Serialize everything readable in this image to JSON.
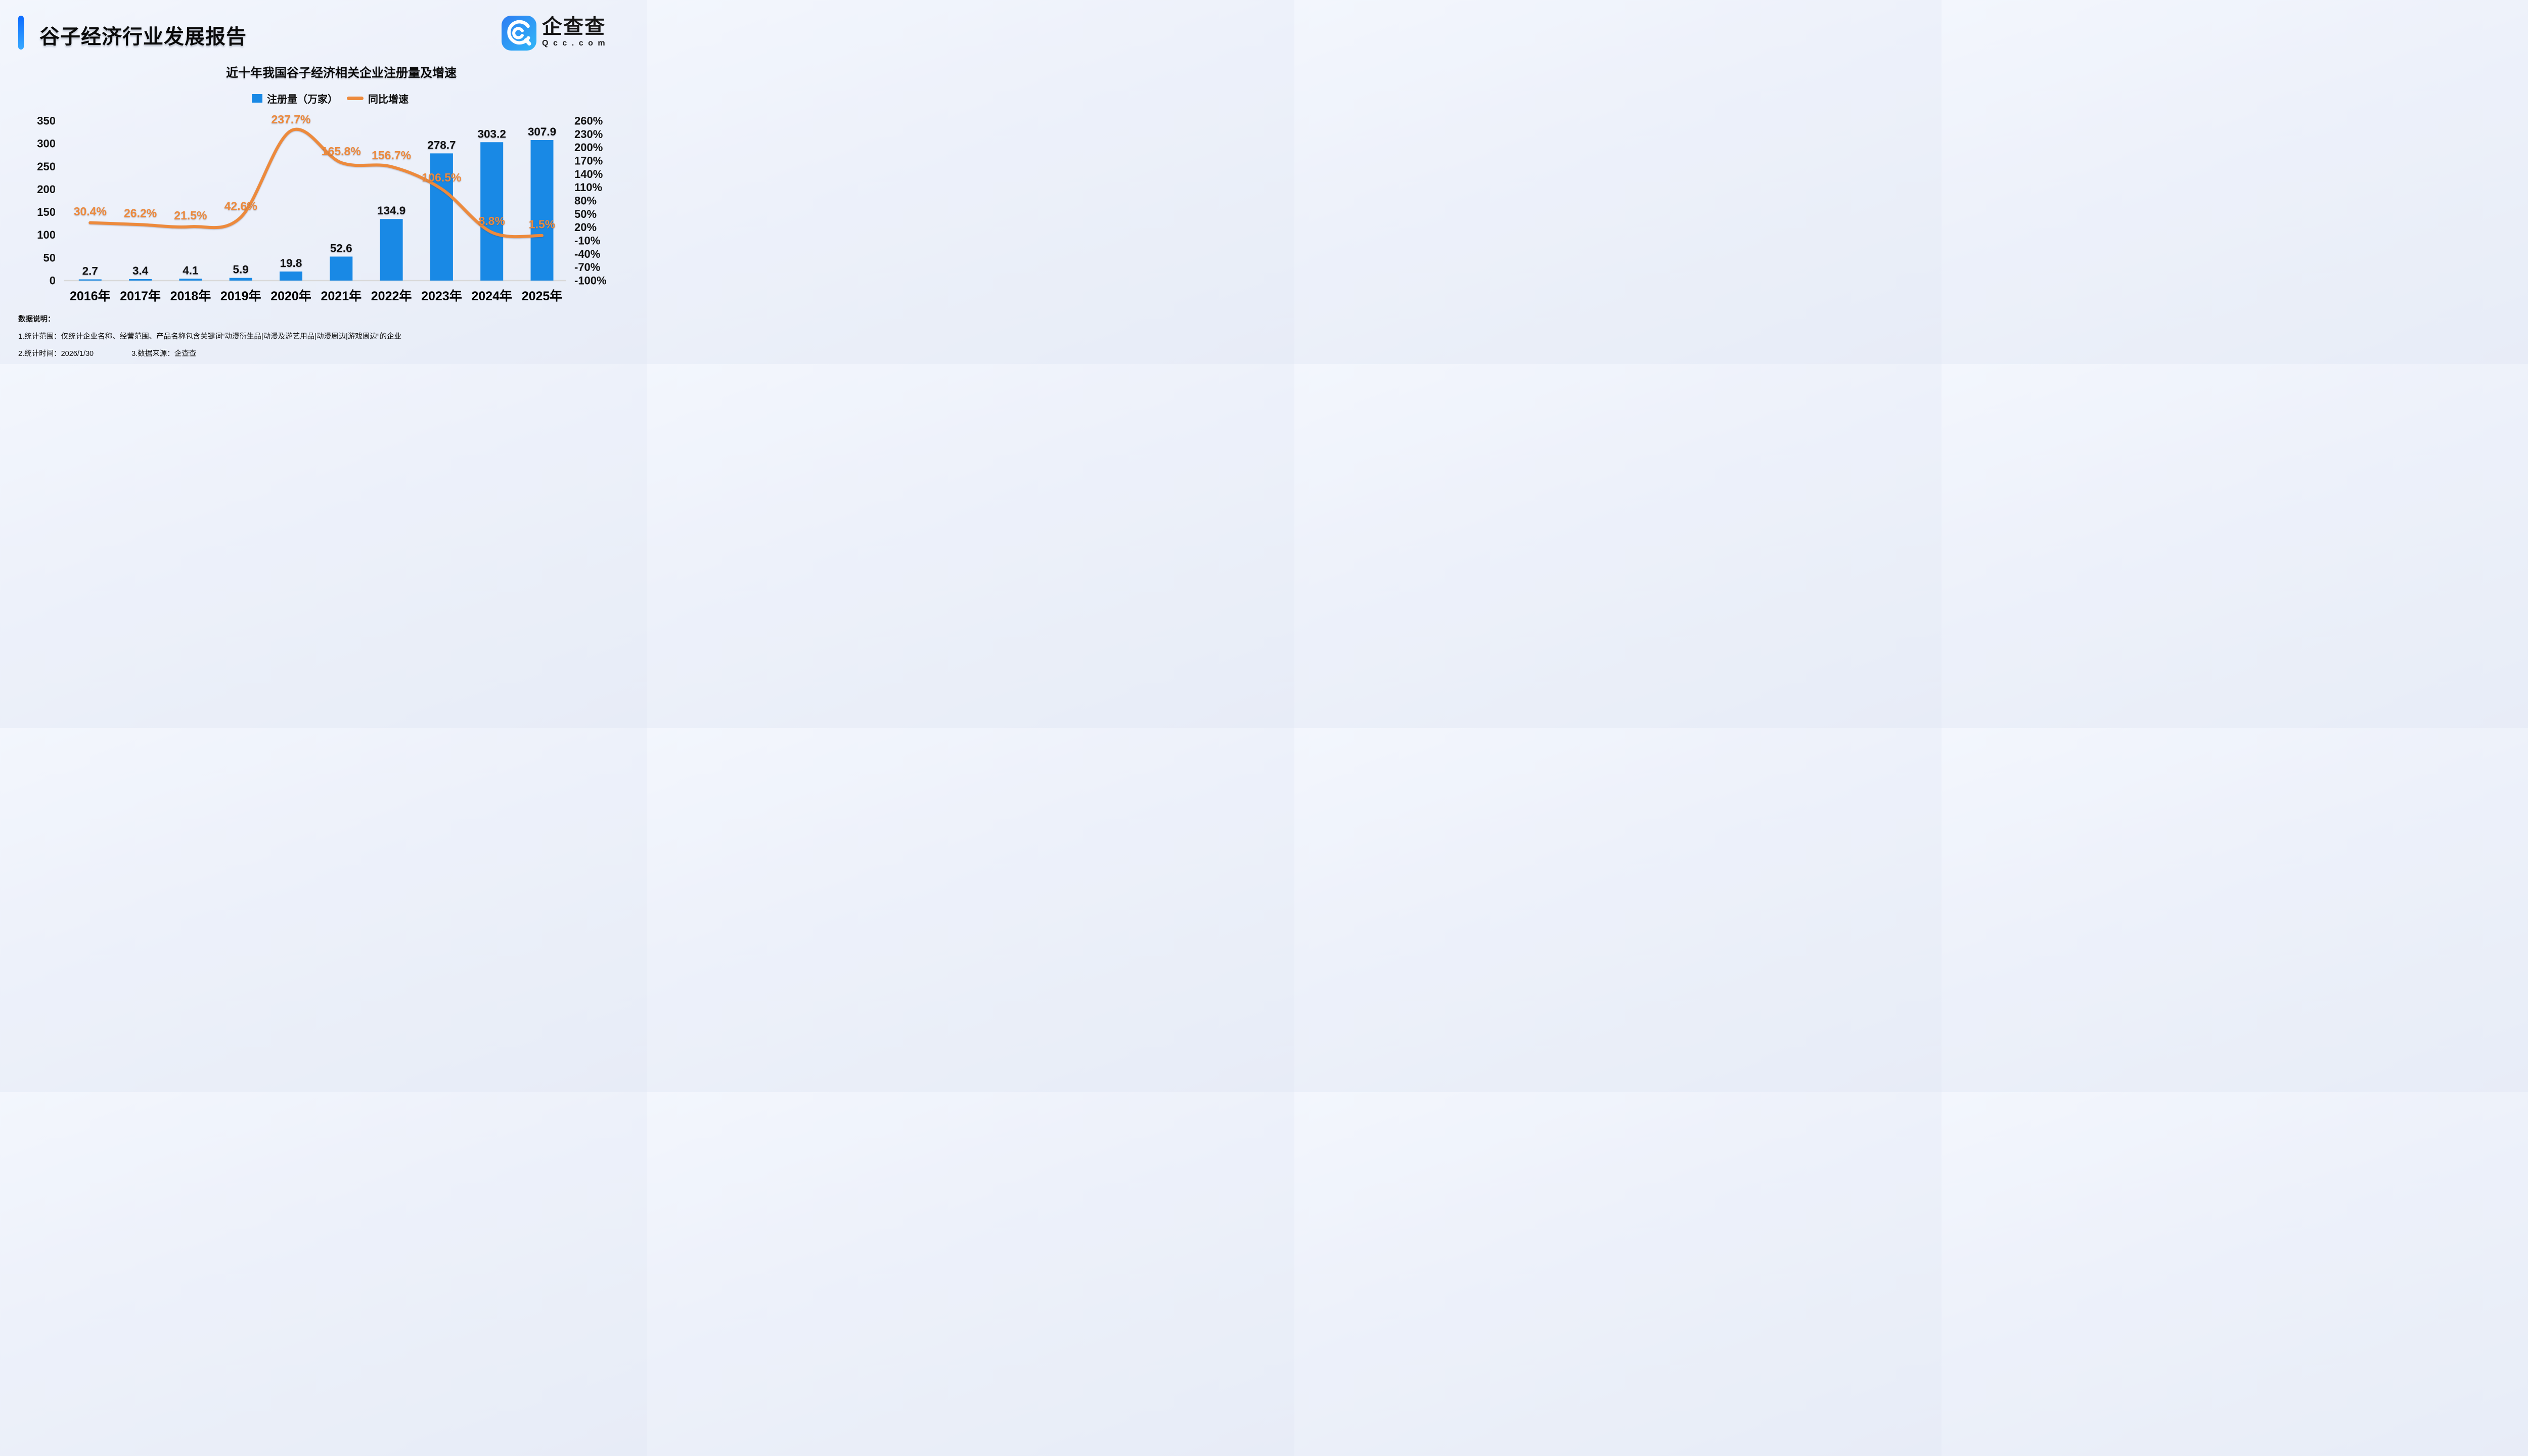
{
  "header": {
    "title": "谷子经济行业发展报告",
    "accent_from": "#0c6bff",
    "accent_to": "#38a9ff"
  },
  "logo": {
    "name": "企查查",
    "domain": "Qcc.com",
    "icon": "qcc-spiral-icon",
    "icon_from": "#2d7df2",
    "icon_to": "#31b6f7"
  },
  "chart": {
    "title": "近十年我国谷子经济相关企业注册量及增速",
    "legend": [
      {
        "label": "注册量（万家）",
        "type": "bar",
        "color": "#1989e5"
      },
      {
        "label": "同比增速",
        "type": "line",
        "color": "#ed8a3c"
      }
    ]
  },
  "notes": {
    "heading": "数据说明：",
    "line1": "1.统计范围：仅统计企业名称、经营范围、产品名称包含关键词“动漫衍生品|动漫及游艺用品|动漫周边|游戏周边”的企业",
    "line2a": "2.统计时间：2026/1/30",
    "line2b": "3.数据来源：企查查"
  },
  "chart_data": {
    "type": "bar",
    "title": "近十年我国谷子经济相关企业注册量及增速",
    "categories": [
      "2016年",
      "2017年",
      "2018年",
      "2019年",
      "2020年",
      "2021年",
      "2022年",
      "2023年",
      "2024年",
      "2025年"
    ],
    "series": [
      {
        "name": "注册量（万家）",
        "chart": "bar",
        "axis": "left",
        "color": "#1989e5",
        "values": [
          2.7,
          3.4,
          4.1,
          5.9,
          19.8,
          52.6,
          134.9,
          278.7,
          303.2,
          307.9
        ]
      },
      {
        "name": "同比增速",
        "chart": "line",
        "axis": "right",
        "unit": "%",
        "color": "#ed8a3c",
        "values": [
          30.4,
          26.2,
          21.5,
          42.6,
          237.7,
          165.8,
          156.7,
          106.5,
          8.8,
          1.5
        ]
      }
    ],
    "left_axis": {
      "min": 0,
      "max": 350,
      "step": 50
    },
    "right_axis": {
      "min": -100,
      "max": 260,
      "step": 30,
      "unit": "%"
    },
    "legend_position": "top",
    "grid": false,
    "axis_line_color": "#d9d9d9",
    "label_color": "#101010",
    "growth_label_color": "#ed8a3c"
  }
}
